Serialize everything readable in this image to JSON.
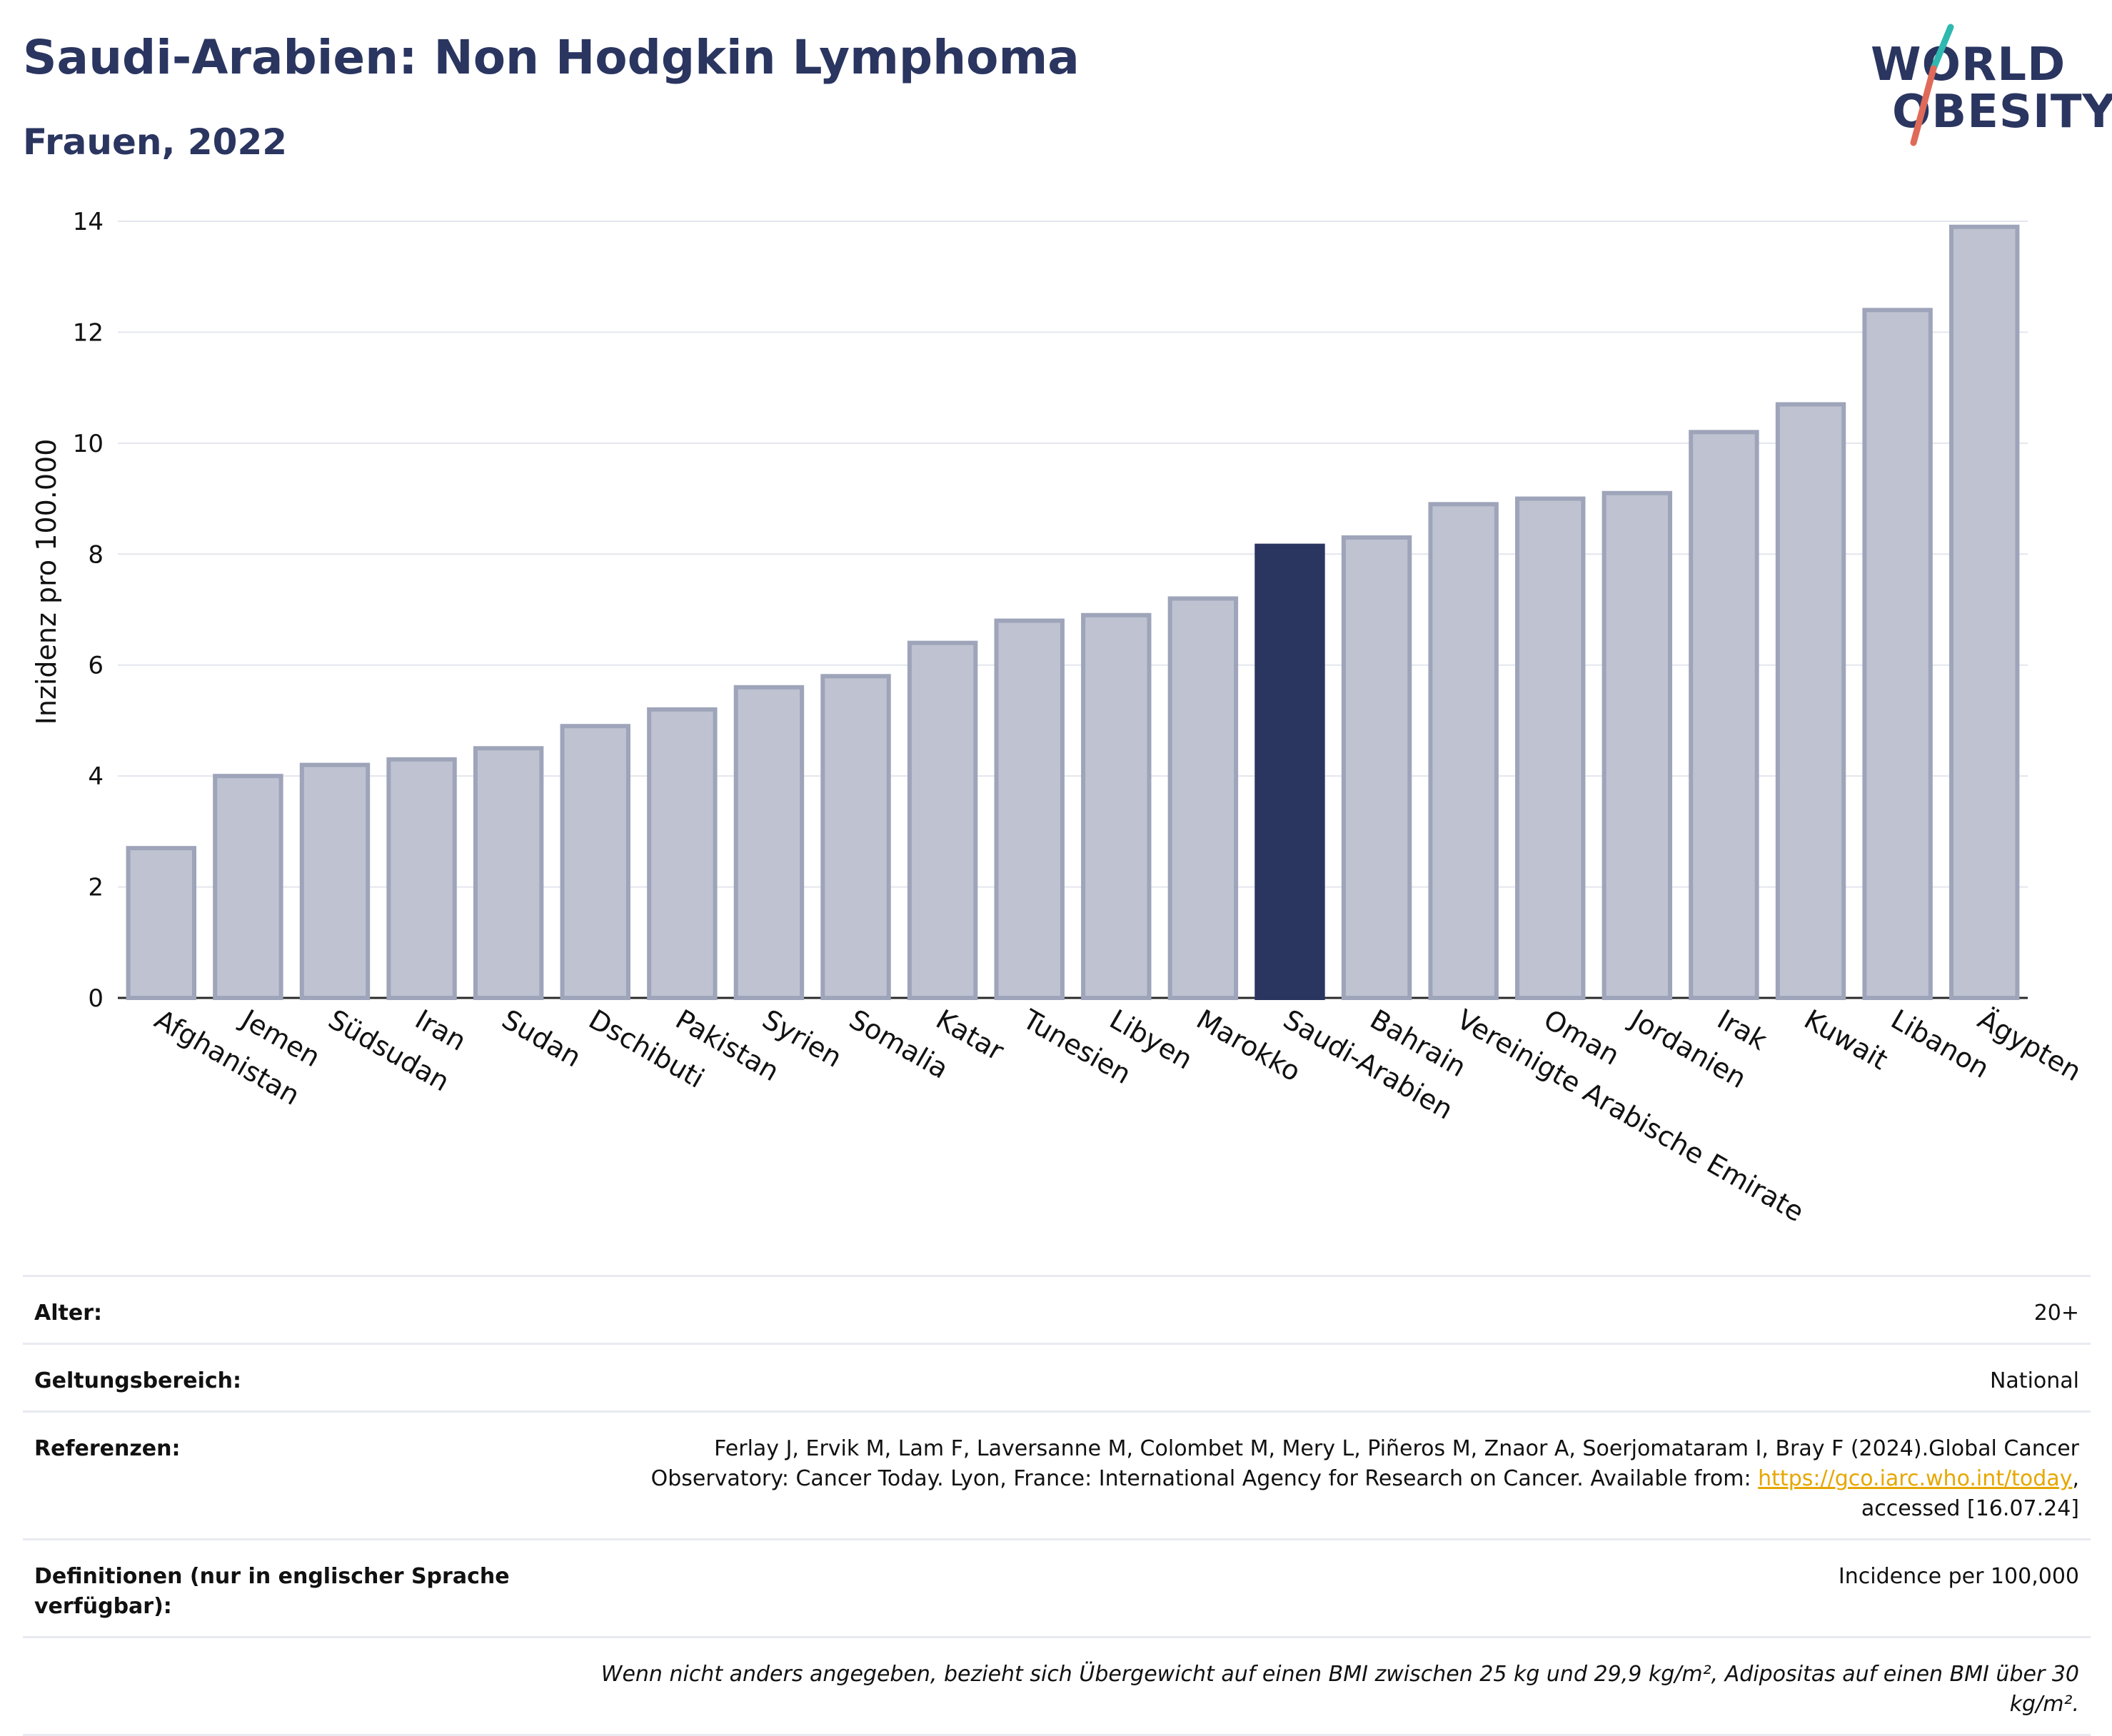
{
  "header": {
    "title": "Saudi-Arabien: Non Hodgkin Lymphoma",
    "subtitle": "Frauen, 2022"
  },
  "logo": {
    "line1": "WORLD",
    "line2": "OBESITY"
  },
  "colors": {
    "bar": "#bfc3d1",
    "bar_border": "#9ea4b9",
    "highlight": "#2a3560",
    "text": "#2a3560",
    "accent_teal": "#2fb8b0",
    "accent_coral": "#e06a5a"
  },
  "chart_data": {
    "type": "bar",
    "ylabel": "Inzidenz pro 100.000",
    "ylim": [
      0,
      14
    ],
    "yticks": [
      0,
      2,
      4,
      6,
      8,
      10,
      12,
      14
    ],
    "highlight": "Saudi-Arabien",
    "grid": true,
    "categories": [
      "Afghanistan",
      "Jemen",
      "Südsudan",
      "Iran",
      "Sudan",
      "Dschibuti",
      "Pakistan",
      "Syrien",
      "Somalia",
      "Katar",
      "Tunesien",
      "Libyen",
      "Marokko",
      "Saudi-Arabien",
      "Bahrain",
      "Vereinigte Arabische Emirate",
      "Oman",
      "Jordanien",
      "Irak",
      "Kuwait",
      "Libanon",
      "Ägypten"
    ],
    "values": [
      2.7,
      4.0,
      4.2,
      4.3,
      4.5,
      4.9,
      5.2,
      5.6,
      5.8,
      6.4,
      6.8,
      6.9,
      7.2,
      8.15,
      8.3,
      8.9,
      9.0,
      9.1,
      10.2,
      10.7,
      12.4,
      13.9
    ]
  },
  "meta": {
    "age_label": "Alter:",
    "age_value": "20+",
    "scope_label": "Geltungsbereich:",
    "scope_value": "National",
    "refs_label": "Referenzen:",
    "refs_text1": "Ferlay J, Ervik M, Lam F, Laversanne M, Colombet M, Mery L, Piñeros M, Znaor A, Soerjomataram I, Bray F (2024).Global Cancer",
    "refs_text2": "Observatory: Cancer Today. Lyon, France: International Agency for Research on Cancer. Available from: ",
    "refs_link": "https://gco.iarc.who.int/today",
    "refs_text3": ",",
    "refs_text4": "accessed [16.07.24]",
    "defs_label": "Definitionen (nur in englischer Sprache verfügbar):",
    "defs_value": "Incidence per 100,000",
    "note": "Wenn nicht anders angegeben, bezieht sich Übergewicht auf einen BMI zwischen 25 kg und 29,9 kg/m², Adipositas auf einen BMI über 30 kg/m²."
  }
}
